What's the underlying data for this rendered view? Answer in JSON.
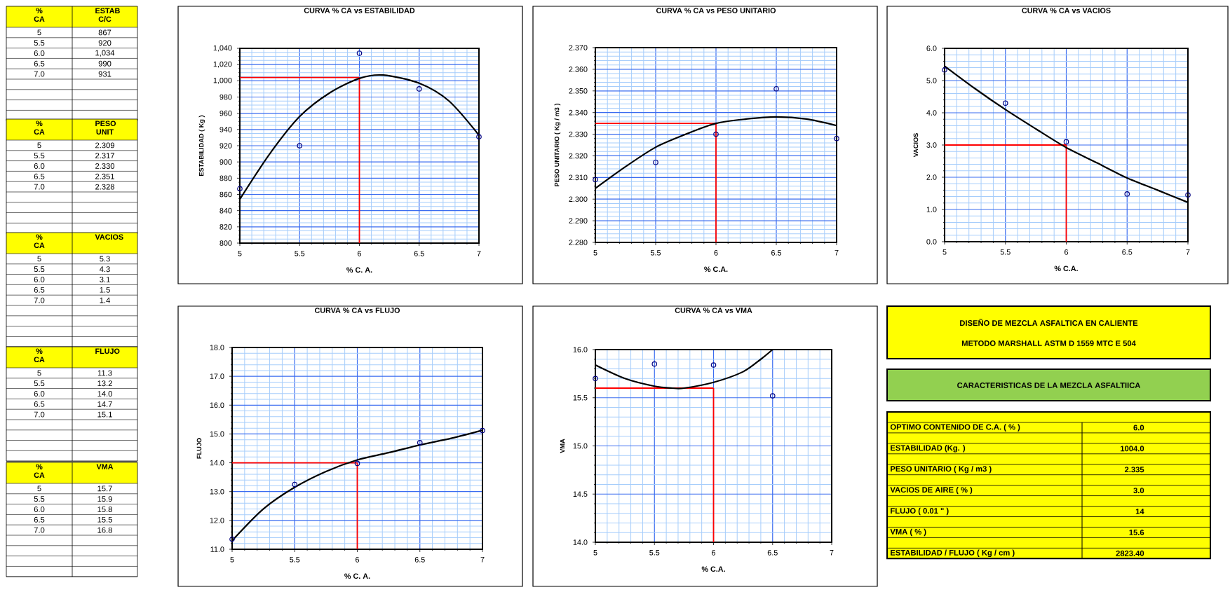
{
  "chart_data": [
    {
      "type": "scatter",
      "title": "CURVA % CA vs ESTABILIDAD",
      "xlabel": "% C. A.",
      "ylabel": "ESTABILIDAD ( Kg )",
      "x": [
        5,
        5.5,
        6,
        6.5,
        7
      ],
      "series": [
        {
          "type": "scatter",
          "color": "#000080",
          "marker": "circle",
          "values": [
            867,
            920,
            1034,
            990,
            931
          ]
        },
        {
          "type": "line",
          "color": "#000000",
          "x": [
            5,
            5.25,
            5.5,
            5.75,
            6,
            6.2,
            6.5,
            6.75,
            7
          ],
          "values": [
            854,
            910,
            956,
            985,
            1003,
            1007,
            997,
            975,
            933
          ]
        }
      ],
      "xlim": [
        5,
        7
      ],
      "xticks": [
        5,
        {
          "value": 5.1,
          "label": null
        },
        {
          "value": 5.2,
          "label": null
        },
        {
          "value": 5.3,
          "label": null
        },
        {
          "value": 5.4,
          "label": null
        },
        5.5,
        {
          "value": 5.6,
          "label": null
        },
        {
          "value": 5.7,
          "label": null
        },
        {
          "value": 5.8,
          "label": null
        },
        {
          "value": 5.9,
          "label": null
        },
        6,
        {
          "value": 6.1,
          "label": null
        },
        {
          "value": 6.2,
          "label": null
        },
        {
          "value": 6.3,
          "label": null
        },
        {
          "value": 6.4,
          "label": null
        },
        6.5,
        {
          "value": 6.6,
          "label": null
        },
        {
          "value": 6.7,
          "label": null
        },
        {
          "value": 6.8,
          "label": null
        },
        {
          "value": 6.9,
          "label": null
        },
        7
      ],
      "ylim": [
        800,
        1040
      ],
      "yticks": [
        800,
        {
          "value": 805,
          "label": null
        },
        {
          "value": 810,
          "label": null
        },
        {
          "value": 815,
          "label": null
        },
        820,
        {
          "value": 825,
          "label": null
        },
        {
          "value": 830,
          "label": null
        },
        {
          "value": 835,
          "label": null
        },
        840,
        {
          "value": 845,
          "label": null
        },
        {
          "value": 850,
          "label": null
        },
        {
          "value": 855,
          "label": null
        },
        860,
        {
          "value": 865,
          "label": null
        },
        {
          "value": 870,
          "label": null
        },
        {
          "value": 875,
          "label": null
        },
        880,
        {
          "value": 885,
          "label": null
        },
        {
          "value": 890,
          "label": null
        },
        {
          "value": 895,
          "label": null
        },
        900,
        {
          "value": 905,
          "label": null
        },
        {
          "value": 910,
          "label": null
        },
        {
          "value": 915,
          "label": null
        },
        920,
        {
          "value": 925,
          "label": null
        },
        {
          "value": 930,
          "label": null
        },
        {
          "value": 935,
          "label": null
        },
        940,
        {
          "value": 945,
          "label": null
        },
        {
          "value": 950,
          "label": null
        },
        {
          "value": 955,
          "label": null
        },
        960,
        {
          "value": 965,
          "label": null
        },
        {
          "value": 970,
          "label": null
        },
        {
          "value": 975,
          "label": null
        },
        980,
        {
          "value": 985,
          "label": null
        },
        {
          "value": 990,
          "label": null
        },
        {
          "value": 995,
          "label": null
        },
        {
          "value": 1000,
          "label": "1,000"
        },
        {
          "value": 1005,
          "label": null
        },
        {
          "value": 1010,
          "label": null
        },
        {
          "value": 1015,
          "label": null
        },
        {
          "value": 1020,
          "label": "1,020"
        },
        {
          "value": 1025,
          "label": null
        },
        {
          "value": 1030,
          "label": null
        },
        {
          "value": 1035,
          "label": null
        },
        {
          "value": 1040,
          "label": "1,040"
        }
      ],
      "grid": true,
      "ref_lines": [
        {
          "axis": "x",
          "value": 6,
          "color": "#ff0000"
        },
        {
          "axis": "y",
          "value": 1004,
          "color": "#ff0000"
        }
      ],
      "annotations": [
        "% CA",
        "ESTAB C/C",
        "5",
        "867",
        "5.5",
        "920",
        "6.0",
        "1,034",
        "6.5",
        "990",
        "7.0",
        "931"
      ]
    },
    {
      "type": "scatter",
      "title": "CURVA % CA vs PESO UNITARIO",
      "xlabel": "% C.A.",
      "ylabel": "PESO UNITARIO ( Kg / m3 )",
      "x": [
        5,
        5.5,
        6,
        6.5,
        7
      ],
      "series": [
        {
          "type": "scatter",
          "color": "#000080",
          "marker": "circle",
          "values": [
            2.309,
            2.317,
            2.33,
            2.351,
            2.328
          ]
        },
        {
          "type": "line",
          "color": "#000000",
          "x": [
            5,
            5.25,
            5.5,
            5.75,
            6,
            6.25,
            6.5,
            6.75,
            7
          ],
          "values": [
            2.305,
            2.315,
            2.324,
            2.33,
            2.335,
            2.337,
            2.338,
            2.337,
            2.334
          ]
        }
      ],
      "xlim": [
        5,
        7
      ],
      "xticks": [
        5,
        {
          "value": 5.1,
          "label": null
        },
        {
          "value": 5.2,
          "label": null
        },
        {
          "value": 5.3,
          "label": null
        },
        {
          "value": 5.4,
          "label": null
        },
        5.5,
        {
          "value": 5.6,
          "label": null
        },
        {
          "value": 5.7,
          "label": null
        },
        {
          "value": 5.8,
          "label": null
        },
        {
          "value": 5.9,
          "label": null
        },
        6,
        {
          "value": 6.1,
          "label": null
        },
        {
          "value": 6.2,
          "label": null
        },
        {
          "value": 6.3,
          "label": null
        },
        {
          "value": 6.4,
          "label": null
        },
        6.5,
        {
          "value": 6.6,
          "label": null
        },
        {
          "value": 6.7,
          "label": null
        },
        {
          "value": 6.8,
          "label": null
        },
        {
          "value": 6.9,
          "label": null
        },
        7
      ],
      "ylim": [
        2.28,
        2.37
      ],
      "yticks": [
        {
          "value": 2.28,
          "label": "2.280"
        },
        {
          "value": 2.282,
          "label": null
        },
        {
          "value": 2.284,
          "label": null
        },
        {
          "value": 2.286,
          "label": null
        },
        {
          "value": 2.288,
          "label": null
        },
        {
          "value": 2.29,
          "label": "2.290"
        },
        {
          "value": 2.292,
          "label": null
        },
        {
          "value": 2.294,
          "label": null
        },
        {
          "value": 2.296,
          "label": null
        },
        {
          "value": 2.298,
          "label": null
        },
        {
          "value": 2.3,
          "label": "2.300"
        },
        {
          "value": 2.302,
          "label": null
        },
        {
          "value": 2.304,
          "label": null
        },
        {
          "value": 2.306,
          "label": null
        },
        {
          "value": 2.308,
          "label": null
        },
        {
          "value": 2.31,
          "label": "2.310"
        },
        {
          "value": 2.312,
          "label": null
        },
        {
          "value": 2.314,
          "label": null
        },
        {
          "value": 2.316,
          "label": null
        },
        {
          "value": 2.318,
          "label": null
        },
        {
          "value": 2.32,
          "label": "2.320"
        },
        {
          "value": 2.322,
          "label": null
        },
        {
          "value": 2.324,
          "label": null
        },
        {
          "value": 2.326,
          "label": null
        },
        {
          "value": 2.328,
          "label": null
        },
        {
          "value": 2.33,
          "label": "2.330"
        },
        {
          "value": 2.332,
          "label": null
        },
        {
          "value": 2.334,
          "label": null
        },
        {
          "value": 2.336,
          "label": null
        },
        {
          "value": 2.338,
          "label": null
        },
        {
          "value": 2.34,
          "label": "2.340"
        },
        {
          "value": 2.342,
          "label": null
        },
        {
          "value": 2.344,
          "label": null
        },
        {
          "value": 2.346,
          "label": null
        },
        {
          "value": 2.348,
          "label": null
        },
        {
          "value": 2.35,
          "label": "2.350"
        },
        {
          "value": 2.352,
          "label": null
        },
        {
          "value": 2.354,
          "label": null
        },
        {
          "value": 2.356,
          "label": null
        },
        {
          "value": 2.358,
          "label": null
        },
        {
          "value": 2.36,
          "label": "2.360"
        },
        {
          "value": 2.362,
          "label": null
        },
        {
          "value": 2.364,
          "label": null
        },
        {
          "value": 2.366,
          "label": null
        },
        {
          "value": 2.368,
          "label": null
        },
        {
          "value": 2.37,
          "label": "2.370"
        }
      ],
      "grid": true,
      "ref_lines": [
        {
          "axis": "x",
          "value": 6,
          "color": "#ff0000"
        },
        {
          "axis": "y",
          "value": 2.335,
          "color": "#ff0000"
        }
      ],
      "annotations": [
        "% CA",
        "PESO UNIT",
        "5",
        "2.309",
        "5.5",
        "2.317",
        "6.0",
        "2.330",
        "6.5",
        "2.351",
        "7.0",
        "2.328"
      ]
    },
    {
      "type": "scatter",
      "title": "CURVA % CA vs VACIOS",
      "xlabel": "% C.A.",
      "ylabel": "VACIOS",
      "x": [
        5,
        5.5,
        6,
        6.5,
        7
      ],
      "series": [
        {
          "type": "scatter",
          "color": "#000080",
          "marker": "circle",
          "values": [
            5.33,
            4.3,
            3.1,
            1.48,
            1.45
          ]
        },
        {
          "type": "line",
          "color": "#000000",
          "x": [
            5,
            5.25,
            5.5,
            5.75,
            6,
            6.25,
            6.5,
            6.75,
            7
          ],
          "values": [
            5.45,
            4.75,
            4.1,
            3.5,
            2.92,
            2.45,
            1.98,
            1.6,
            1.22
          ]
        }
      ],
      "xlim": [
        5,
        7
      ],
      "xticks": [
        5,
        {
          "value": 5.1,
          "label": null
        },
        {
          "value": 5.2,
          "label": null
        },
        {
          "value": 5.3,
          "label": null
        },
        {
          "value": 5.4,
          "label": null
        },
        5.5,
        {
          "value": 5.6,
          "label": null
        },
        {
          "value": 5.7,
          "label": null
        },
        {
          "value": 5.8,
          "label": null
        },
        {
          "value": 5.9,
          "label": null
        },
        6,
        {
          "value": 6.1,
          "label": null
        },
        {
          "value": 6.2,
          "label": null
        },
        {
          "value": 6.3,
          "label": null
        },
        {
          "value": 6.4,
          "label": null
        },
        6.5,
        {
          "value": 6.6,
          "label": null
        },
        {
          "value": 6.7,
          "label": null
        },
        {
          "value": 6.8,
          "label": null
        },
        {
          "value": 6.9,
          "label": null
        },
        7
      ],
      "ylim": [
        0,
        6
      ],
      "yticks": [
        {
          "value": 0,
          "label": "0.0"
        },
        {
          "value": 0.2,
          "label": null
        },
        {
          "value": 0.4,
          "label": null
        },
        {
          "value": 0.6,
          "label": null
        },
        {
          "value": 0.8,
          "label": null
        },
        {
          "value": 1,
          "label": "1.0"
        },
        {
          "value": 1.2,
          "label": null
        },
        {
          "value": 1.4,
          "label": null
        },
        {
          "value": 1.6,
          "label": null
        },
        {
          "value": 1.8,
          "label": null
        },
        {
          "value": 2,
          "label": "2.0"
        },
        {
          "value": 2.2,
          "label": null
        },
        {
          "value": 2.4,
          "label": null
        },
        {
          "value": 2.6,
          "label": null
        },
        {
          "value": 2.8,
          "label": null
        },
        {
          "value": 3,
          "label": "3.0"
        },
        {
          "value": 3.2,
          "label": null
        },
        {
          "value": 3.4,
          "label": null
        },
        {
          "value": 3.6,
          "label": null
        },
        {
          "value": 3.8,
          "label": null
        },
        {
          "value": 4,
          "label": "4.0"
        },
        {
          "value": 4.2,
          "label": null
        },
        {
          "value": 4.4,
          "label": null
        },
        {
          "value": 4.6,
          "label": null
        },
        {
          "value": 4.8,
          "label": null
        },
        {
          "value": 5,
          "label": "5.0"
        },
        {
          "value": 5.2,
          "label": null
        },
        {
          "value": 5.4,
          "label": null
        },
        {
          "value": 5.6,
          "label": null
        },
        {
          "value": 5.8,
          "label": null
        },
        {
          "value": 6,
          "label": "6.0"
        }
      ],
      "grid": true,
      "ref_lines": [
        {
          "axis": "x",
          "value": 6,
          "color": "#ff0000"
        },
        {
          "axis": "y",
          "value": 3.0,
          "color": "#ff0000"
        }
      ],
      "annotations": [
        "% CA",
        "VACIOS",
        "5",
        "5.3",
        "5.5",
        "4.3",
        "6.0",
        "3.1",
        "6.5",
        "1.5",
        "7.0",
        "1.4"
      ]
    },
    {
      "type": "scatter",
      "title": "CURVA % CA vs FLUJO",
      "xlabel": "% C. A.",
      "ylabel": "FLUJO",
      "x": [
        5,
        5.5,
        6,
        6.5,
        7
      ],
      "series": [
        {
          "type": "scatter",
          "color": "#000080",
          "marker": "circle",
          "values": [
            11.35,
            13.25,
            13.98,
            14.7,
            15.12
          ]
        },
        {
          "type": "line",
          "color": "#000000",
          "x": [
            5,
            5.25,
            5.5,
            5.75,
            6,
            6.25,
            6.5,
            6.75,
            7
          ],
          "values": [
            11.3,
            12.4,
            13.15,
            13.7,
            14.1,
            14.35,
            14.62,
            14.85,
            15.13
          ]
        }
      ],
      "xlim": [
        5,
        7
      ],
      "xticks": [
        5,
        {
          "value": 5.1,
          "label": null
        },
        {
          "value": 5.2,
          "label": null
        },
        {
          "value": 5.3,
          "label": null
        },
        {
          "value": 5.4,
          "label": null
        },
        5.5,
        {
          "value": 5.6,
          "label": null
        },
        {
          "value": 5.7,
          "label": null
        },
        {
          "value": 5.8,
          "label": null
        },
        {
          "value": 5.9,
          "label": null
        },
        6,
        {
          "value": 6.1,
          "label": null
        },
        {
          "value": 6.2,
          "label": null
        },
        {
          "value": 6.3,
          "label": null
        },
        {
          "value": 6.4,
          "label": null
        },
        6.5,
        {
          "value": 6.6,
          "label": null
        },
        {
          "value": 6.7,
          "label": null
        },
        {
          "value": 6.8,
          "label": null
        },
        {
          "value": 6.9,
          "label": null
        },
        7
      ],
      "ylim": [
        11,
        18
      ],
      "yticks": [
        {
          "value": 11,
          "label": "11.0"
        },
        {
          "value": 11.2,
          "label": null
        },
        {
          "value": 11.4,
          "label": null
        },
        {
          "value": 11.6,
          "label": null
        },
        {
          "value": 11.8,
          "label": null
        },
        {
          "value": 12,
          "label": "12.0"
        },
        {
          "value": 12.2,
          "label": null
        },
        {
          "value": 12.4,
          "label": null
        },
        {
          "value": 12.6,
          "label": null
        },
        {
          "value": 12.8,
          "label": null
        },
        {
          "value": 13,
          "label": "13.0"
        },
        {
          "value": 13.2,
          "label": null
        },
        {
          "value": 13.4,
          "label": null
        },
        {
          "value": 13.6,
          "label": null
        },
        {
          "value": 13.8,
          "label": null
        },
        {
          "value": 14,
          "label": "14.0"
        },
        {
          "value": 14.2,
          "label": null
        },
        {
          "value": 14.4,
          "label": null
        },
        {
          "value": 14.6,
          "label": null
        },
        {
          "value": 14.8,
          "label": null
        },
        {
          "value": 15,
          "label": "15.0"
        },
        {
          "value": 15.2,
          "label": null
        },
        {
          "value": 15.4,
          "label": null
        },
        {
          "value": 15.6,
          "label": null
        },
        {
          "value": 15.8,
          "label": null
        },
        {
          "value": 16,
          "label": "16.0"
        },
        {
          "value": 16.2,
          "label": null
        },
        {
          "value": 16.4,
          "label": null
        },
        {
          "value": 16.6,
          "label": null
        },
        {
          "value": 16.8,
          "label": null
        },
        {
          "value": 17,
          "label": "17.0"
        },
        {
          "value": 17.2,
          "label": null
        },
        {
          "value": 17.4,
          "label": null
        },
        {
          "value": 17.6,
          "label": null
        },
        {
          "value": 17.8,
          "label": null
        },
        {
          "value": 18,
          "label": "18.0"
        }
      ],
      "grid": true,
      "ref_lines": [
        {
          "axis": "x",
          "value": 6,
          "color": "#ff0000"
        },
        {
          "axis": "y",
          "value": 14.0,
          "color": "#ff0000"
        }
      ],
      "annotations": [
        "% CA",
        "FLUJO",
        "5",
        "11.3",
        "5.5",
        "13.2",
        "6.0",
        "14.0",
        "6.5",
        "14.7",
        "7.0",
        "15.1"
      ]
    },
    {
      "type": "scatter",
      "title": "CURVA % CA vs VMA",
      "xlabel": "% C.A.",
      "ylabel": "VMA",
      "series": [
        {
          "type": "scatter",
          "color": "#000080",
          "marker": "circle",
          "x": [
            5,
            5.5,
            6,
            6.5
          ],
          "values": [
            15.7,
            15.85,
            15.84,
            15.52
          ]
        },
        {
          "type": "line",
          "color": "#000000",
          "x": [
            5,
            5.25,
            5.5,
            5.65,
            5.75,
            6,
            6.25,
            6.4,
            6.5
          ],
          "values": [
            15.84,
            15.7,
            15.62,
            15.6,
            15.6,
            15.66,
            15.77,
            15.9,
            16.0
          ]
        }
      ],
      "xlim": [
        5,
        7
      ],
      "xticks": [
        5,
        {
          "value": 5.1,
          "label": null
        },
        {
          "value": 5.2,
          "label": null
        },
        {
          "value": 5.3,
          "label": null
        },
        {
          "value": 5.4,
          "label": null
        },
        5.5,
        {
          "value": 5.6,
          "label": null
        },
        {
          "value": 5.7,
          "label": null
        },
        {
          "value": 5.8,
          "label": null
        },
        {
          "value": 5.9,
          "label": null
        },
        6,
        {
          "value": 6.1,
          "label": null
        },
        {
          "value": 6.2,
          "label": null
        },
        {
          "value": 6.3,
          "label": null
        },
        {
          "value": 6.4,
          "label": null
        },
        6.5,
        {
          "value": 6.6,
          "label": null
        },
        {
          "value": 6.7,
          "label": null
        },
        {
          "value": 6.8,
          "label": null
        },
        {
          "value": 6.9,
          "label": null
        },
        7
      ],
      "ylim": [
        14,
        16
      ],
      "yticks": [
        {
          "value": 14,
          "label": "14.0"
        },
        {
          "value": 14.1,
          "label": null
        },
        {
          "value": 14.2,
          "label": null
        },
        {
          "value": 14.3,
          "label": null
        },
        {
          "value": 14.4,
          "label": null
        },
        {
          "value": 14.5,
          "label": "14.5"
        },
        {
          "value": 14.6,
          "label": null
        },
        {
          "value": 14.7,
          "label": null
        },
        {
          "value": 14.8,
          "label": null
        },
        {
          "value": 14.9,
          "label": null
        },
        {
          "value": 15,
          "label": "15.0"
        },
        {
          "value": 15.1,
          "label": null
        },
        {
          "value": 15.2,
          "label": null
        },
        {
          "value": 15.3,
          "label": null
        },
        {
          "value": 15.4,
          "label": null
        },
        {
          "value": 15.5,
          "label": "15.5"
        },
        {
          "value": 15.6,
          "label": null
        },
        {
          "value": 15.7,
          "label": null
        },
        {
          "value": 15.8,
          "label": null
        },
        {
          "value": 15.9,
          "label": null
        },
        {
          "value": 16,
          "label": "16.0"
        }
      ],
      "grid": true,
      "ref_lines": [
        {
          "axis": "x",
          "value": 6,
          "color": "#ff0000"
        },
        {
          "axis": "y",
          "value": 15.6,
          "color": "#ff0000"
        }
      ],
      "annotations": [
        "% CA",
        "VMA",
        "5",
        "15.7",
        "5.5",
        "15.9",
        "6.0",
        "15.8",
        "6.5",
        "15.5",
        "7.0",
        "16.8"
      ]
    },
    {
      "type": "other",
      "title": "DISEÑO  DE  MEZCLA  ASFALTICA  EN  CALIENTE",
      "subtitle": "METODO MARSHALL ASTM  D 1559        MTC  E  504",
      "annotations": [
        "CARACTERISTICAS  DE  LA  MEZCLA  ASFALTIICA"
      ],
      "categories": [
        "OPTIMO CONTENIDO DE C.A. ( % )",
        "ESTABILIDAD  (Kg. )",
        "PESO  UNITARIO  ( Kg / m3 )",
        "VACIOS  DE  AIRE  ( % )",
        "FLUJO  ( 0.01 \" )",
        "VMA   (  %  )",
        "ESTABILIDAD /  FLUJO  (  Kg / cm )"
      ],
      "value_labels": [
        "6.0",
        "1004.0",
        "2.335",
        "3.0",
        "14",
        "15.6",
        "2823.40"
      ]
    }
  ]
}
